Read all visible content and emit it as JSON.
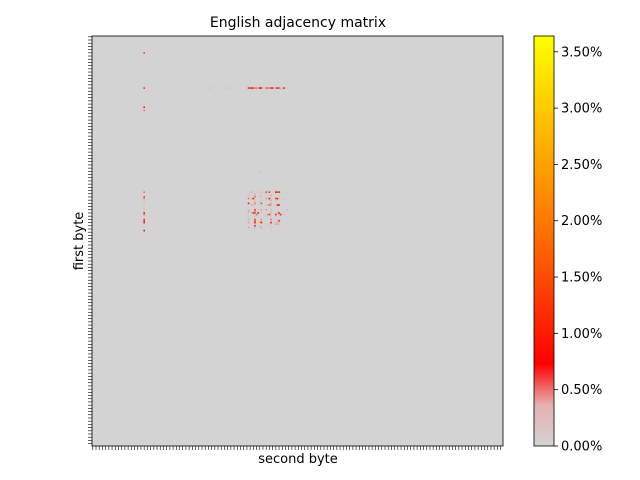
{
  "chart_data": {
    "type": "heatmap",
    "title": "English adjacency matrix",
    "xlabel": "second byte",
    "ylabel": "first byte",
    "grid": false,
    "colormap": [
      "#d3d3d3",
      "#ff0000",
      "#ffa500",
      "#ffff00"
    ],
    "background_color": "#d3d3d3",
    "dimensions": [
      256,
      256
    ],
    "colorbar": {
      "range": [
        0,
        3.64
      ],
      "ticks": [
        0,
        0.5,
        1.0,
        1.5,
        2.0,
        2.5,
        3.0,
        3.5
      ],
      "tick_labels": [
        "0.00%",
        "0.50%",
        "1.00%",
        "1.50%",
        "2.00%",
        "2.50%",
        "3.00%",
        "3.50%"
      ]
    },
    "cells": [
      [
        32,
        32,
        1.2
      ],
      [
        32,
        97,
        1.0
      ],
      [
        32,
        98,
        0.6
      ],
      [
        32,
        99,
        0.8
      ],
      [
        32,
        100,
        0.6
      ],
      [
        32,
        101,
        0.5
      ],
      [
        32,
        102,
        0.5
      ],
      [
        32,
        103,
        0.4
      ],
      [
        32,
        104,
        0.7
      ],
      [
        32,
        105,
        1.0
      ],
      [
        32,
        106,
        0.2
      ],
      [
        32,
        107,
        0.2
      ],
      [
        32,
        108,
        0.5
      ],
      [
        32,
        109,
        0.6
      ],
      [
        32,
        110,
        0.4
      ],
      [
        32,
        111,
        1.0
      ],
      [
        32,
        112,
        0.7
      ],
      [
        32,
        113,
        0.1
      ],
      [
        32,
        114,
        0.5
      ],
      [
        32,
        115,
        1.0
      ],
      [
        32,
        116,
        1.4
      ],
      [
        32,
        117,
        0.3
      ],
      [
        32,
        118,
        0.2
      ],
      [
        32,
        119,
        0.8
      ],
      [
        32,
        121,
        0.2
      ],
      [
        32,
        10,
        0.3
      ],
      [
        32,
        65,
        0.1
      ],
      [
        32,
        67,
        0.2
      ],
      [
        32,
        69,
        0.1
      ],
      [
        32,
        73,
        0.3
      ],
      [
        10,
        32,
        0.6
      ],
      [
        44,
        32,
        0.7
      ],
      [
        46,
        32,
        0.5
      ],
      [
        97,
        32,
        0.5
      ],
      [
        100,
        32,
        1.2
      ],
      [
        101,
        32,
        2.5
      ],
      [
        102,
        32,
        0.3
      ],
      [
        103,
        32,
        0.2
      ],
      [
        104,
        32,
        0.3
      ],
      [
        107,
        32,
        0.2
      ],
      [
        108,
        32,
        0.3
      ],
      [
        110,
        32,
        0.8
      ],
      [
        111,
        32,
        0.5
      ],
      [
        114,
        32,
        0.6
      ],
      [
        115,
        32,
        1.1
      ],
      [
        116,
        32,
        0.7
      ],
      [
        121,
        32,
        0.8
      ],
      [
        97,
        97,
        0.05
      ],
      [
        97,
        98,
        0.2
      ],
      [
        97,
        99,
        0.3
      ],
      [
        97,
        100,
        0.3
      ],
      [
        97,
        103,
        0.2
      ],
      [
        97,
        105,
        0.3
      ],
      [
        97,
        108,
        0.6
      ],
      [
        97,
        109,
        0.2
      ],
      [
        97,
        110,
        1.2
      ],
      [
        97,
        112,
        0.2
      ],
      [
        97,
        114,
        0.7
      ],
      [
        97,
        115,
        0.6
      ],
      [
        97,
        116,
        0.9
      ],
      [
        97,
        121,
        0.2
      ],
      [
        98,
        101,
        0.3
      ],
      [
        98,
        108,
        0.1
      ],
      [
        98,
        117,
        0.1
      ],
      [
        99,
        97,
        0.3
      ],
      [
        99,
        101,
        0.4
      ],
      [
        99,
        104,
        0.3
      ],
      [
        99,
        107,
        0.1
      ],
      [
        99,
        111,
        0.4
      ],
      [
        99,
        116,
        0.2
      ],
      [
        100,
        101,
        0.5
      ],
      [
        100,
        105,
        0.3
      ],
      [
        100,
        111,
        0.1
      ],
      [
        101,
        97,
        0.5
      ],
      [
        101,
        99,
        0.3
      ],
      [
        101,
        100,
        0.8
      ],
      [
        101,
        108,
        0.4
      ],
      [
        101,
        109,
        0.3
      ],
      [
        101,
        110,
        0.9
      ],
      [
        101,
        114,
        1.4
      ],
      [
        101,
        115,
        0.9
      ],
      [
        101,
        116,
        0.3
      ],
      [
        101,
        118,
        0.2
      ],
      [
        101,
        120,
        0.1
      ],
      [
        102,
        101,
        0.2
      ],
      [
        102,
        105,
        0.2
      ],
      [
        102,
        111,
        0.4
      ],
      [
        102,
        114,
        0.2
      ],
      [
        103,
        101,
        0.2
      ],
      [
        103,
        104,
        0.2
      ],
      [
        103,
        114,
        0.1
      ],
      [
        104,
        97,
        0.7
      ],
      [
        104,
        101,
        2.1
      ],
      [
        104,
        105,
        0.6
      ],
      [
        104,
        111,
        0.4
      ],
      [
        105,
        99,
        0.4
      ],
      [
        105,
        100,
        0.2
      ],
      [
        105,
        101,
        0.2
      ],
      [
        105,
        108,
        0.3
      ],
      [
        105,
        109,
        0.2
      ],
      [
        105,
        110,
        1.6
      ],
      [
        105,
        111,
        0.4
      ],
      [
        105,
        115,
        0.8
      ],
      [
        105,
        116,
        0.9
      ],
      [
        105,
        118,
        0.2
      ],
      [
        107,
        101,
        0.1
      ],
      [
        107,
        105,
        0.1
      ],
      [
        108,
        97,
        0.3
      ],
      [
        108,
        101,
        0.6
      ],
      [
        108,
        105,
        0.4
      ],
      [
        108,
        108,
        0.4
      ],
      [
        108,
        111,
        0.3
      ],
      [
        108,
        121,
        0.3
      ],
      [
        109,
        97,
        0.4
      ],
      [
        109,
        101,
        0.5
      ],
      [
        109,
        105,
        0.2
      ],
      [
        109,
        111,
        0.2
      ],
      [
        110,
        97,
        0.2
      ],
      [
        110,
        99,
        0.3
      ],
      [
        110,
        100,
        1.0
      ],
      [
        110,
        101,
        0.6
      ],
      [
        110,
        103,
        0.8
      ],
      [
        110,
        105,
        0.2
      ],
      [
        110,
        111,
        0.3
      ],
      [
        110,
        115,
        0.3
      ],
      [
        110,
        116,
        0.8
      ],
      [
        111,
        102,
        0.5
      ],
      [
        111,
        108,
        0.3
      ],
      [
        111,
        109,
        0.4
      ],
      [
        111,
        110,
        1.1
      ],
      [
        111,
        111,
        0.2
      ],
      [
        111,
        114,
        0.9
      ],
      [
        111,
        115,
        0.2
      ],
      [
        111,
        116,
        0.3
      ],
      [
        111,
        117,
        0.7
      ],
      [
        111,
        119,
        0.3
      ],
      [
        112,
        97,
        0.2
      ],
      [
        112,
        101,
        0.3
      ],
      [
        112,
        108,
        0.1
      ],
      [
        112,
        111,
        0.2
      ],
      [
        112,
        114,
        0.2
      ],
      [
        114,
        97,
        0.4
      ],
      [
        114,
        101,
        1.4
      ],
      [
        114,
        105,
        0.4
      ],
      [
        114,
        111,
        0.5
      ],
      [
        114,
        115,
        0.2
      ],
      [
        114,
        116,
        0.2
      ],
      [
        115,
        97,
        0.1
      ],
      [
        115,
        101,
        0.6
      ],
      [
        115,
        104,
        0.2
      ],
      [
        115,
        105,
        0.4
      ],
      [
        115,
        111,
        0.3
      ],
      [
        115,
        115,
        0.3
      ],
      [
        115,
        116,
        0.9
      ],
      [
        115,
        117,
        0.2
      ],
      [
        116,
        97,
        0.4
      ],
      [
        116,
        101,
        0.8
      ],
      [
        116,
        104,
        2.8
      ],
      [
        116,
        105,
        0.9
      ],
      [
        116,
        111,
        0.9
      ],
      [
        116,
        114,
        0.3
      ],
      [
        116,
        115,
        0.2
      ],
      [
        116,
        116,
        0.2
      ],
      [
        116,
        121,
        0.1
      ],
      [
        117,
        108,
        0.2
      ],
      [
        117,
        110,
        0.3
      ],
      [
        117,
        114,
        0.4
      ],
      [
        117,
        115,
        0.3
      ],
      [
        117,
        116,
        0.3
      ],
      [
        118,
        101,
        0.7
      ],
      [
        118,
        105,
        0.1
      ],
      [
        119,
        97,
        0.4
      ],
      [
        119,
        101,
        0.3
      ],
      [
        119,
        104,
        0.3
      ],
      [
        119,
        105,
        0.4
      ],
      [
        119,
        111,
        0.2
      ],
      [
        121,
        101,
        0.1
      ],
      [
        121,
        111,
        0.2
      ],
      [
        73,
        32,
        0.2
      ],
      [
        73,
        110,
        0.1
      ],
      [
        73,
        116,
        0.1
      ],
      [
        84,
        104,
        0.3
      ],
      [
        84,
        32,
        0.05
      ],
      [
        65,
        32,
        0.1
      ],
      [
        65,
        110,
        0.1
      ],
      [
        39,
        115,
        0.1
      ],
      [
        39,
        116,
        0.1
      ],
      [
        45,
        32,
        0.1
      ],
      [
        58,
        32,
        0.05
      ],
      [
        59,
        32,
        0.05
      ],
      [
        34,
        32,
        0.05
      ],
      [
        32,
        34,
        0.05
      ],
      [
        32,
        40,
        0.05
      ],
      [
        41,
        32,
        0.05
      ],
      [
        13,
        10,
        0.2
      ],
      [
        32,
        72,
        0.1
      ],
      [
        32,
        77,
        0.1
      ],
      [
        32,
        83,
        0.1
      ],
      [
        32,
        84,
        0.3
      ],
      [
        32,
        87,
        0.1
      ],
      [
        32,
        49,
        0.1
      ],
      [
        32,
        50,
        0.05
      ],
      [
        49,
        57,
        0.1
      ],
      [
        57,
        32,
        0.05
      ],
      [
        103,
        32,
        0.05
      ],
      [
        193,
        32,
        0.05
      ],
      [
        32,
        130,
        0.02
      ],
      [
        32,
        140,
        0.02
      ]
    ]
  }
}
